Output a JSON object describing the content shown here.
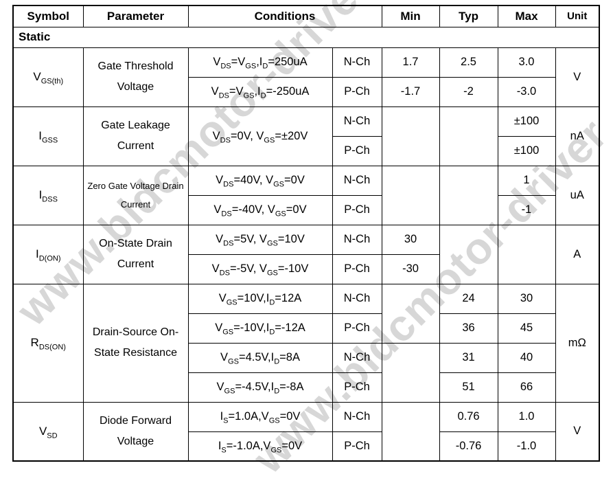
{
  "watermark": {
    "text": "www.bldcmotor-driver",
    "color": "#d7d7d7"
  },
  "colors": {
    "border": "#000000",
    "text": "#000000"
  },
  "header": {
    "symbol": "Symbol",
    "parameter": "Parameter",
    "conditions": "Conditions",
    "min": "Min",
    "typ": "Typ",
    "max": "Max",
    "unit": "Unit"
  },
  "section_title": "Static",
  "sections": [
    {
      "symbol": [
        {
          "t": "V"
        },
        {
          "sub": "GS(th)"
        }
      ],
      "parameter": "Gate Threshold Voltage",
      "unit": "V",
      "rows": [
        {
          "condition": [
            {
              "t": "V"
            },
            {
              "sub": "DS"
            },
            {
              "t": "=V"
            },
            {
              "sub": "GS"
            },
            {
              "t": ",I"
            },
            {
              "sub": "D"
            },
            {
              "t": "=250uA"
            }
          ],
          "channel": "N-Ch",
          "min": "1.7",
          "typ": "2.5",
          "max": "3.0"
        },
        {
          "condition": [
            {
              "t": "V"
            },
            {
              "sub": "DS"
            },
            {
              "t": "=V"
            },
            {
              "sub": "GS"
            },
            {
              "t": ",I"
            },
            {
              "sub": "D"
            },
            {
              "t": "=-250uA"
            }
          ],
          "channel": "P-Ch",
          "min": "-1.7",
          "typ": "-2",
          "max": "-3.0"
        }
      ]
    },
    {
      "symbol": [
        {
          "t": "I"
        },
        {
          "sub": "GSS"
        }
      ],
      "parameter": "Gate Leakage Current",
      "unit": "nA",
      "condition_merged": [
        {
          "t": "V"
        },
        {
          "sub": "DS"
        },
        {
          "t": "=0V, V"
        },
        {
          "sub": "GS"
        },
        {
          "t": "=±20V"
        }
      ],
      "rows": [
        {
          "channel": "N-Ch",
          "max": "±100"
        },
        {
          "channel": "P-Ch",
          "max": "±100"
        }
      ]
    },
    {
      "symbol": [
        {
          "t": "I"
        },
        {
          "sub": "DSS"
        }
      ],
      "parameter": "Zero Gate Voltage Drain Current",
      "unit": "uA",
      "rows": [
        {
          "condition": [
            {
              "t": "V"
            },
            {
              "sub": "DS"
            },
            {
              "t": "=40V, V"
            },
            {
              "sub": "GS"
            },
            {
              "t": "=0V"
            }
          ],
          "channel": "N-Ch",
          "max": "1"
        },
        {
          "condition": [
            {
              "t": "V"
            },
            {
              "sub": "DS"
            },
            {
              "t": "=-40V, V"
            },
            {
              "sub": "GS"
            },
            {
              "t": "=0V"
            }
          ],
          "channel": "P-Ch",
          "max": "-1"
        }
      ]
    },
    {
      "symbol": [
        {
          "t": "I"
        },
        {
          "sub": "D(ON)"
        }
      ],
      "parameter": "On-State Drain Current",
      "unit": "A",
      "rows": [
        {
          "condition": [
            {
              "t": "V"
            },
            {
              "sub": "DS"
            },
            {
              "t": "=5V, V"
            },
            {
              "sub": "GS"
            },
            {
              "t": "=10V"
            }
          ],
          "channel": "N-Ch",
          "min": "30"
        },
        {
          "condition": [
            {
              "t": "V"
            },
            {
              "sub": "DS"
            },
            {
              "t": "=-5V, V"
            },
            {
              "sub": "GS"
            },
            {
              "t": "=-10V"
            }
          ],
          "channel": "P-Ch",
          "min": "-30"
        }
      ]
    },
    {
      "symbol": [
        {
          "t": "R"
        },
        {
          "sub": "DS(ON)"
        }
      ],
      "parameter": "Drain-Source On-State Resistance",
      "unit": "mΩ",
      "rows": [
        {
          "condition": [
            {
              "t": "V"
            },
            {
              "sub": "GS"
            },
            {
              "t": "=10V,I"
            },
            {
              "sub": "D"
            },
            {
              "t": "=12A"
            }
          ],
          "channel": "N-Ch",
          "typ": "24",
          "max": "30"
        },
        {
          "condition": [
            {
              "t": "V"
            },
            {
              "sub": "GS"
            },
            {
              "t": "=-10V,I"
            },
            {
              "sub": "D"
            },
            {
              "t": "=-12A"
            }
          ],
          "channel": "P-Ch",
          "typ": "36",
          "max": "45"
        },
        {
          "condition": [
            {
              "t": "V"
            },
            {
              "sub": "GS"
            },
            {
              "t": "=4.5V,I"
            },
            {
              "sub": "D"
            },
            {
              "t": "=8A"
            }
          ],
          "channel": "N-Ch",
          "typ": "31",
          "max": "40"
        },
        {
          "condition": [
            {
              "t": "V"
            },
            {
              "sub": "GS"
            },
            {
              "t": "=-4.5V,I"
            },
            {
              "sub": "D"
            },
            {
              "t": "=-8A"
            }
          ],
          "channel": "P-Ch",
          "typ": "51",
          "max": "66"
        }
      ]
    },
    {
      "symbol": [
        {
          "t": "V"
        },
        {
          "sub": "SD"
        }
      ],
      "parameter": "Diode Forward Voltage",
      "unit": "V",
      "rows": [
        {
          "condition": [
            {
              "t": "I"
            },
            {
              "sub": "S"
            },
            {
              "t": "=1.0A,V"
            },
            {
              "sub": "GS"
            },
            {
              "t": "=0V"
            }
          ],
          "channel": "N-Ch",
          "typ": "0.76",
          "max": "1.0"
        },
        {
          "condition": [
            {
              "t": "I"
            },
            {
              "sub": "S"
            },
            {
              "t": "=-1.0A,V"
            },
            {
              "sub": "GS"
            },
            {
              "t": "=0V"
            }
          ],
          "channel": "P-Ch",
          "typ": "-0.76",
          "max": "-1.0"
        }
      ]
    }
  ]
}
